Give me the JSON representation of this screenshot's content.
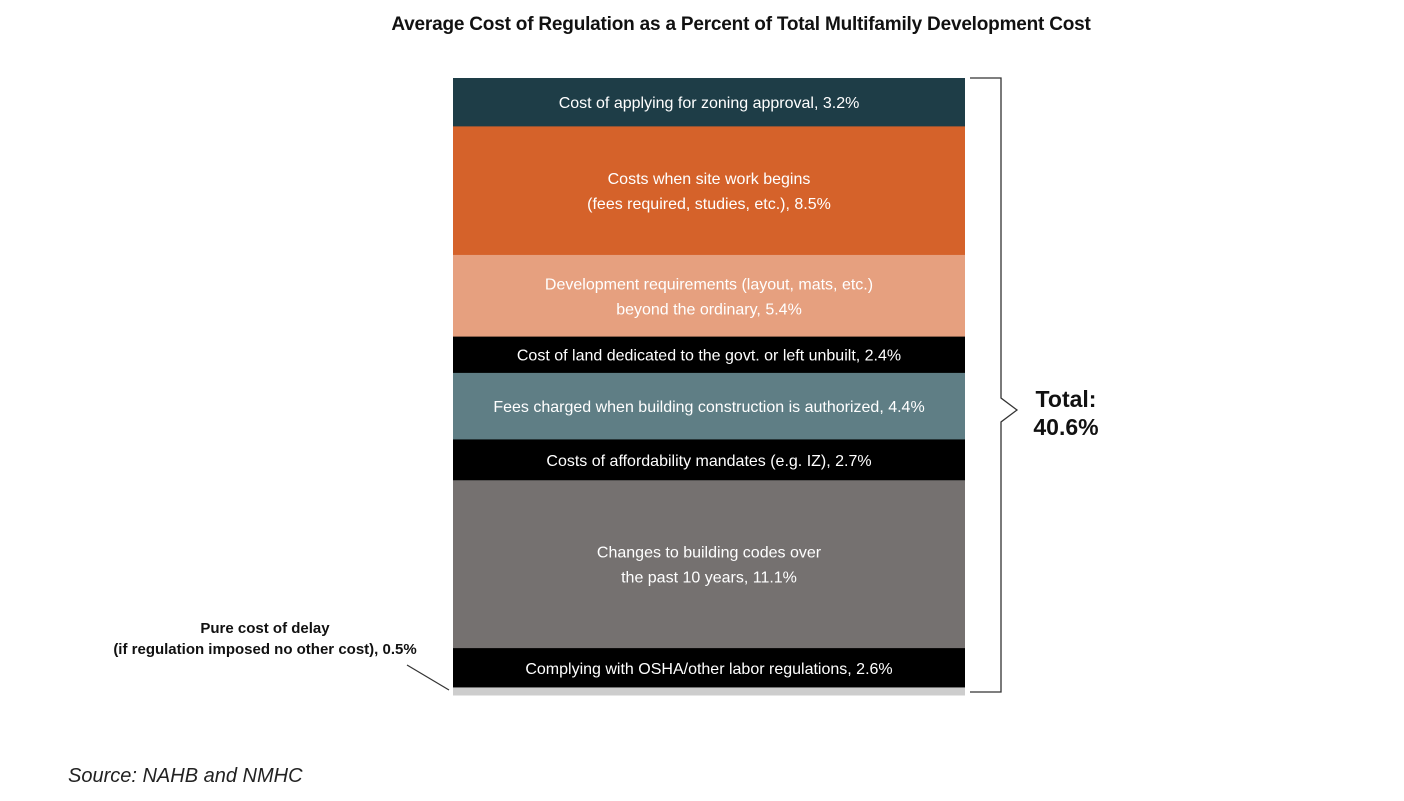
{
  "chart_data": {
    "type": "stacked-bar",
    "title": "Average Cost of Regulation as a Percent of Total Multifamily Development Cost",
    "unit": "%",
    "segments": [
      {
        "lines": [
          "Cost of applying for zoning approval, 3.2%"
        ],
        "value": 3.2,
        "color": "#1e3d47"
      },
      {
        "lines": [
          "Costs when site work begins",
          "(fees required, studies, etc.), 8.5%"
        ],
        "value": 8.5,
        "color": "#d5622a"
      },
      {
        "lines": [
          "Development requirements (layout, mats, etc.)",
          "beyond the ordinary, 5.4%"
        ],
        "value": 5.4,
        "color": "#e6a07f"
      },
      {
        "lines": [
          "Cost of land dedicated to the govt. or left unbuilt, 2.4%"
        ],
        "value": 2.4,
        "color": "#000000"
      },
      {
        "lines": [
          "Fees charged when building construction is authorized, 4.4%"
        ],
        "value": 4.4,
        "color": "#5f7e85"
      },
      {
        "lines": [
          "Costs of affordability mandates (e.g. IZ), 2.7%"
        ],
        "value": 2.7,
        "color": "#000000"
      },
      {
        "lines": [
          "Changes to building codes over",
          "the past 10 years, 11.1%"
        ],
        "value": 11.1,
        "color": "#757170"
      },
      {
        "lines": [
          "Complying with OSHA/other labor regulations, 2.6%"
        ],
        "value": 2.6,
        "color": "#000000"
      },
      {
        "lines": [],
        "value": 0.5,
        "color": "#cdcdcd"
      }
    ],
    "delay_annotation": [
      "Pure cost of delay",
      "(if regulation imposed no other cost), 0.5%"
    ],
    "total": [
      "Total:",
      "40.6%"
    ]
  },
  "source": "Source: NAHB and NMHC"
}
